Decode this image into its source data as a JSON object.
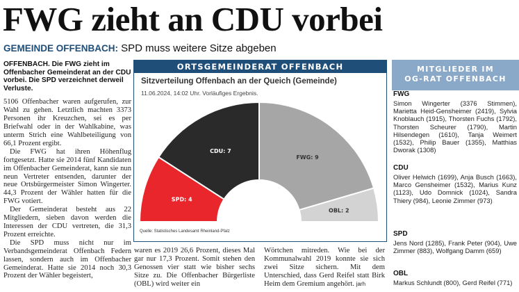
{
  "headline": "FWG zieht an CDU vorbei",
  "kicker": "GEMEINDE OFFENBACH:",
  "subheadline": "SPD muss weitere Sitze abgeben",
  "lead": "OFFENBACH. Die FWG zieht im Offenbacher Gemeinderat an der CDU vorbei. Die SPD verzeichnet derweil Verluste.",
  "col1": [
    "5106 Offenbacher waren aufgerufen, zur Wahl zu gehen. Letztlich machten 3373 Personen ihr Kreuzchen, sei es per Briefwahl oder in der Wahlkabine, was unterm Strich eine Wahlbeteiligung von 66,1 Prozent ergibt.",
    "Die FWG hat ihren Höhenflug fortgesetzt. Hatte sie 2014 fünf Kandidaten im Offenbacher Gemeinderat, kann sie nun neun Vertreter entsenden, darunter der neue Ortsbürgermeister Simon Wingerter. 44,3 Prozent der Wähler hatten für die FWG votiert.",
    "Der Gemeinderat besteht aus 22 Mitgliedern, sieben davon werden die Interessen der CDU vertreten, die 31,3 Prozent erreichte.",
    "Die SPD muss nicht nur im Verbandsgemeinderat Offenbach Federn lassen, sondern auch im Offenbacher Gemeinderat. Hatte sie 2014 noch 30,3 Prozent der Wähler begeistert,"
  ],
  "col2": "waren es 2019 26,6 Prozent, dieses Mal gar nur 17,3 Prozent. Somit stehen den Genossen vier statt wie bisher sechs Sitze zu. Die Offenbacher Bürgerliste (OBL) wird weiter ein",
  "col3": "Wörtchen mitreden. Wie bei der Kommunalwahl 2019 konnte sie sich zwei Sitze sichern. Mit dem Unterschied, dass Gerd Reifel statt Birk Heim dem Gremium angehört. ",
  "col3_sig": "jarh",
  "graphic": {
    "title": "ORTSGEMEINDERAT OFFENBACH",
    "subtitle": "Sitzverteilung Offenbach an der Queich (Gemeinde)",
    "date": "11.06.2024, 14:02 Uhr. Vorläufiges Ergebnis.",
    "source": "Quelle: Statistisches Landesamt Rheinland-Pfalz"
  },
  "chart_data": {
    "type": "pie",
    "subtype": "half-donut",
    "title": "Sitzverteilung Offenbach an der Queich (Gemeinde)",
    "total_seats": 22,
    "segments": [
      {
        "party": "SPD",
        "seats": 4,
        "label": "SPD: 4",
        "color": "#e8262b",
        "text_color": "#ffffff"
      },
      {
        "party": "CDU",
        "seats": 7,
        "label": "CDU: 7",
        "color": "#2b2a2a",
        "text_color": "#ffffff"
      },
      {
        "party": "FWG",
        "seats": 9,
        "label": "FWG: 9",
        "color": "#a6a6a6",
        "text_color": "#333333"
      },
      {
        "party": "OBL",
        "seats": 2,
        "label": "OBL: 2",
        "color": "#d3d3d3",
        "text_color": "#333333"
      }
    ]
  },
  "sidebar": {
    "title_line1": "MITGLIEDER IM",
    "title_line2": "OG-RAT OFFENBACH",
    "parties": [
      {
        "name": "FWG",
        "members": "Simon Wingerter (3376 Stimmen), Marietta Heid-Gensheimer (2419), Sylvia Knoblauch (1915), Thorsten Fuchs (1792), Thorsten Scheurer (1790), Martin Hilsendegen (1610), Tanja Weimert (1532), Philip Bauer (1355), Matthias Dworak (1308)"
      },
      {
        "name": "CDU",
        "members": "Oliver Helwich (1699), Anja Busch (1663), Marco Gensheimer (1532), Marius Kunz (1123), Udo Domnick (1024), Sandra Thiery (984), Leonie Zimmer (973)"
      },
      {
        "name": "SPD",
        "members": "Jens Nord (1285), Frank Peter (904), Uwe Zimmer (883), Wolfgang Damm (659)"
      },
      {
        "name": "OBL",
        "members": "Markus Schlundt (800), Gerd Reifel (771)"
      }
    ]
  }
}
